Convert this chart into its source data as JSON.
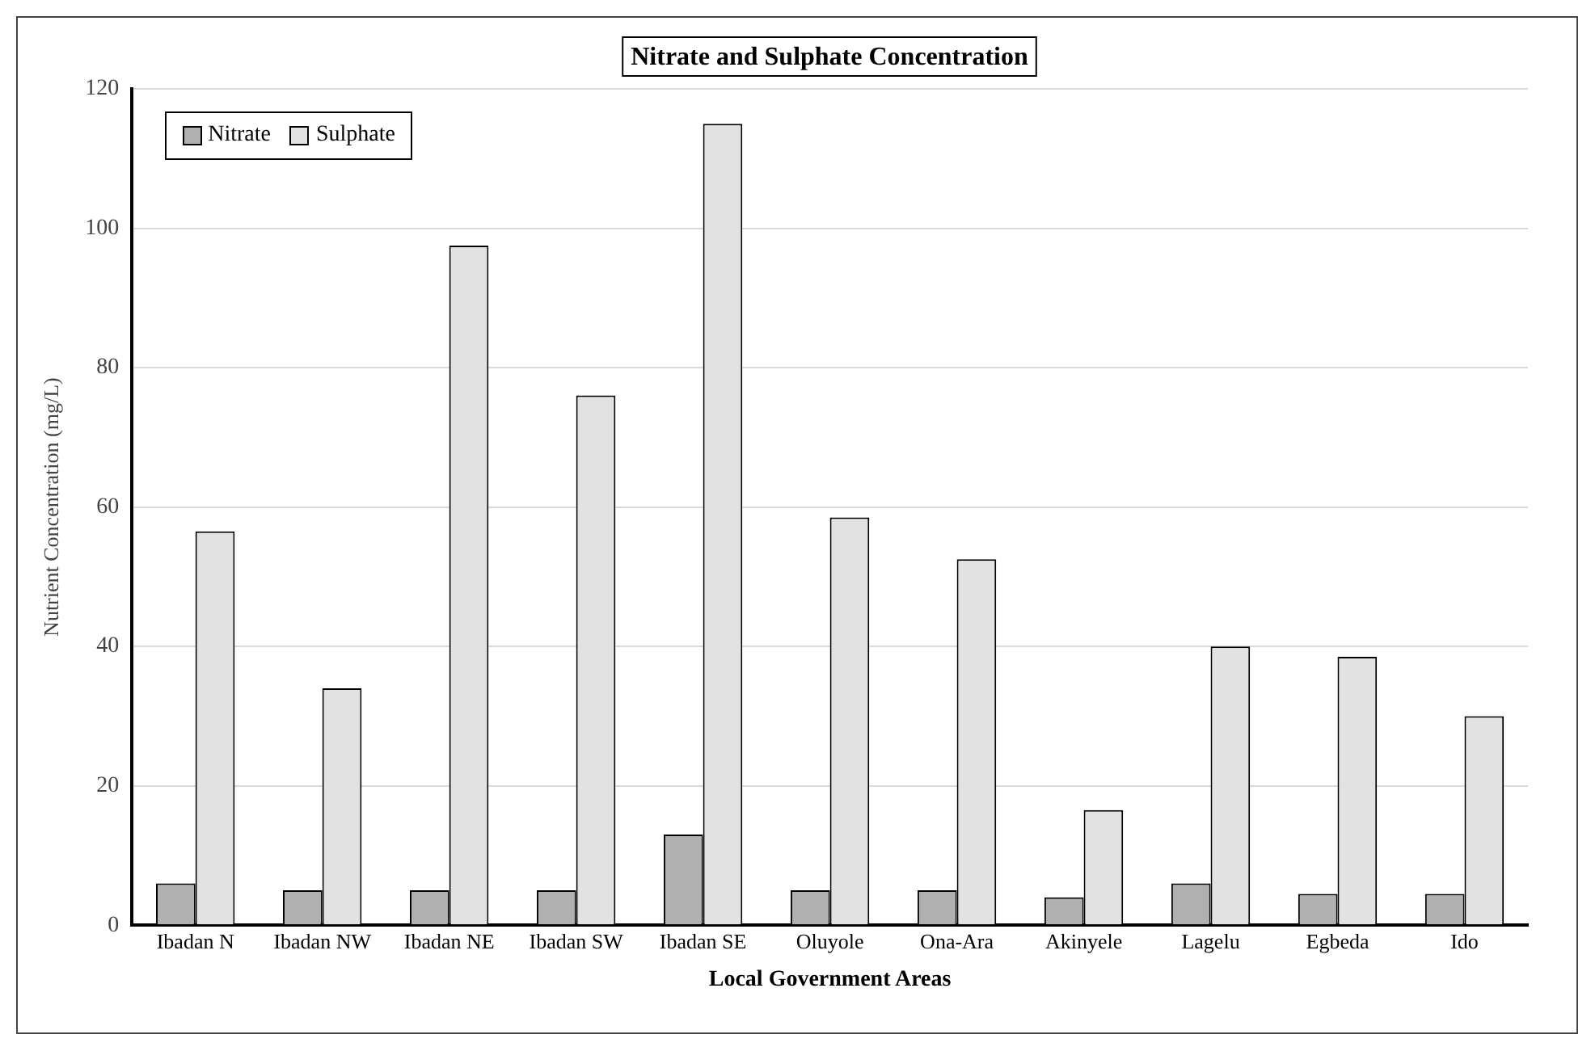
{
  "chart_data": {
    "type": "bar",
    "title": "Nitrate and Sulphate Concentration",
    "xlabel": "Local Government Areas",
    "ylabel": "Nutrient Concentration (mg/L)",
    "categories": [
      "Ibadan N",
      "Ibadan NW",
      "Ibadan NE",
      "Ibadan SW",
      "Ibadan SE",
      "Oluyole",
      "Ona-Ara",
      "Akinyele",
      "Lagelu",
      "Egbeda",
      "Ido"
    ],
    "series": [
      {
        "name": "Nitrate",
        "color": "#b0b0b0",
        "values": [
          6,
          5,
          5,
          5,
          13,
          5,
          5,
          4,
          6,
          4.5,
          4.5
        ]
      },
      {
        "name": "Sulphate",
        "color": "#e2e2e2",
        "values": [
          56.5,
          34,
          97.5,
          76,
          115,
          58.5,
          52.5,
          16.5,
          40,
          38.5,
          30
        ]
      }
    ],
    "ylim": [
      0,
      120
    ],
    "yticks": [
      0,
      20,
      40,
      60,
      80,
      100,
      120
    ],
    "grid": "y",
    "legend": "top left"
  }
}
